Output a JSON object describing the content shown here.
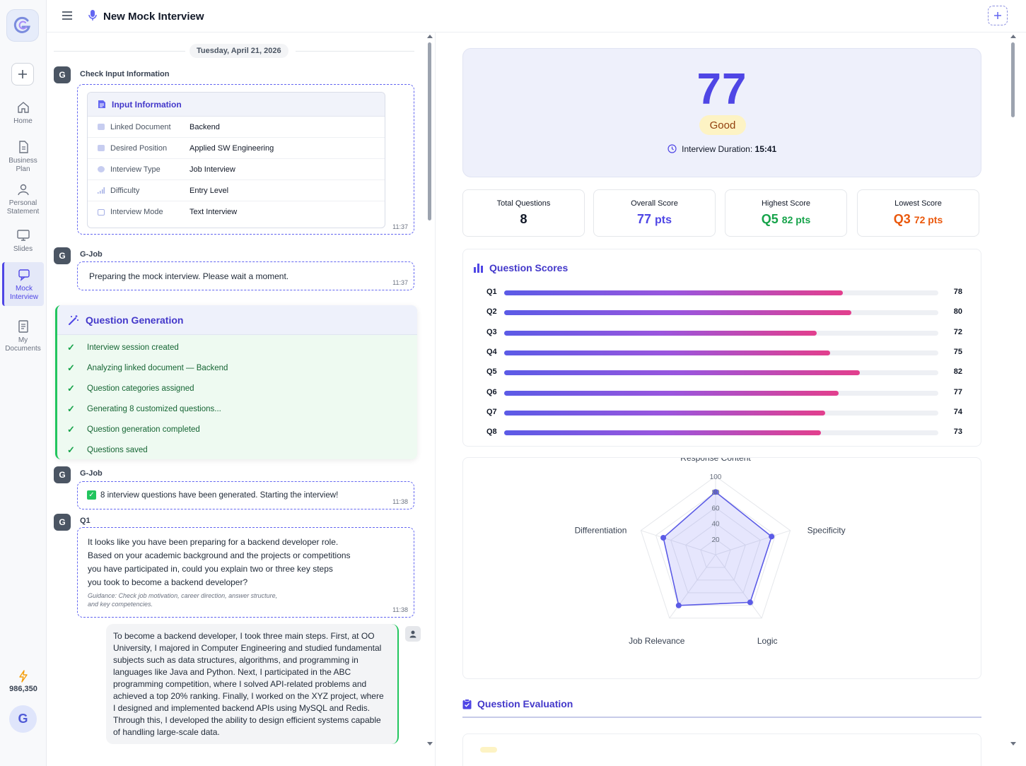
{
  "header": {
    "title": "New Mock Interview"
  },
  "sidebar": {
    "items": [
      {
        "label": "Home",
        "icon": "home-icon"
      },
      {
        "label": "Business Plan",
        "icon": "document-icon"
      },
      {
        "label": "Personal Statement",
        "icon": "person-icon"
      },
      {
        "label": "Slides",
        "icon": "monitor-icon"
      },
      {
        "label": "Mock Interview",
        "icon": "chat-icon",
        "active": true
      },
      {
        "label": "My Documents",
        "icon": "documents-icon"
      }
    ],
    "credits": "986,350",
    "avatar_letter": "G"
  },
  "chat": {
    "date": "Tuesday, April 21, 2026",
    "check_input": {
      "sender": "Check Input Information",
      "avatar": "G",
      "card_title": "Input Information",
      "rows": [
        {
          "label": "Linked Document",
          "value": "Backend"
        },
        {
          "label": "Desired Position",
          "value": "Applied SW Engineering"
        },
        {
          "label": "Interview Type",
          "value": "Job Interview"
        },
        {
          "label": "Difficulty",
          "value": "Entry Level"
        },
        {
          "label": "Interview Mode",
          "value": "Text Interview"
        }
      ],
      "time": "11:37"
    },
    "preparing": {
      "sender": "G-Job",
      "avatar": "G",
      "text": "Preparing the mock interview. Please wait a moment.",
      "time": "11:37"
    },
    "question_generation": {
      "title": "Question Generation",
      "steps": [
        "Interview session created",
        "Analyzing linked document — Backend",
        "Question categories assigned",
        "Generating 8 customized questions...",
        "Question generation completed",
        "Questions saved"
      ]
    },
    "generated": {
      "sender": "G-Job",
      "avatar": "G",
      "text": "8 interview questions have been generated. Starting the interview!",
      "time": "11:38"
    },
    "q1": {
      "sender": "Q1",
      "avatar": "G",
      "lines": [
        "It looks like you have been preparing for a backend developer role.",
        "Based on your academic background and the projects or competitions",
        "you have participated in, could you explain two or three key steps",
        "you took to become a backend developer?"
      ],
      "guidance_lines": [
        "Guidance: Check job motivation, career direction, answer structure,",
        "and key competencies."
      ],
      "time": "11:38"
    },
    "answer": {
      "lines": [
        "To become a backend developer, I took three main steps. First, at OO",
        "University, I majored in Computer Engineering and studied fundamental",
        "subjects such as data structures, algorithms, and programming in",
        "languages like Java and Python. Next, I participated in the ABC",
        "programming competition, where I solved API-related problems and",
        "achieved a top 20% ranking. Finally, I worked on the XYZ project, where",
        "I designed and implemented backend APIs using MySQL and Redis.",
        "Through this, I developed the ability to design efficient systems capable",
        "of handling large-scale data."
      ]
    }
  },
  "results": {
    "score": "77",
    "grade": "Good",
    "duration_label": "Interview Duration:",
    "duration_value": "15:41",
    "stats": [
      {
        "label": "Total Questions",
        "value": "8",
        "unit": "",
        "color": "#111827"
      },
      {
        "label": "Overall Score",
        "value": "77",
        "unit": "pts",
        "color": "#4f46e5"
      },
      {
        "label": "Highest Score",
        "value": "Q5",
        "unit": "82 pts",
        "color": "#16a34a"
      },
      {
        "label": "Lowest Score",
        "value": "Q3",
        "unit": "72 pts",
        "color": "#ea580c"
      }
    ],
    "question_scores_title": "Question Scores",
    "evaluation_title": "Question Evaluation"
  },
  "chart_data": [
    {
      "type": "bar",
      "orientation": "horizontal",
      "title": "Question Scores",
      "categories": [
        "Q1",
        "Q2",
        "Q3",
        "Q4",
        "Q5",
        "Q6",
        "Q7",
        "Q8"
      ],
      "values": [
        78,
        80,
        72,
        75,
        82,
        77,
        74,
        73
      ],
      "xlim": [
        0,
        100
      ]
    },
    {
      "type": "radar",
      "axes": [
        "Response Content",
        "Specificity",
        "Logic",
        "Job Relevance",
        "Differentiation"
      ],
      "values": [
        80,
        75,
        75,
        80,
        70
      ],
      "rlim": [
        0,
        100
      ],
      "ticks": [
        "20",
        "40",
        "60",
        "80",
        "100"
      ]
    }
  ],
  "colors": {
    "accent": "#4f46e5",
    "success": "#16a34a",
    "warning": "#ea580c"
  }
}
